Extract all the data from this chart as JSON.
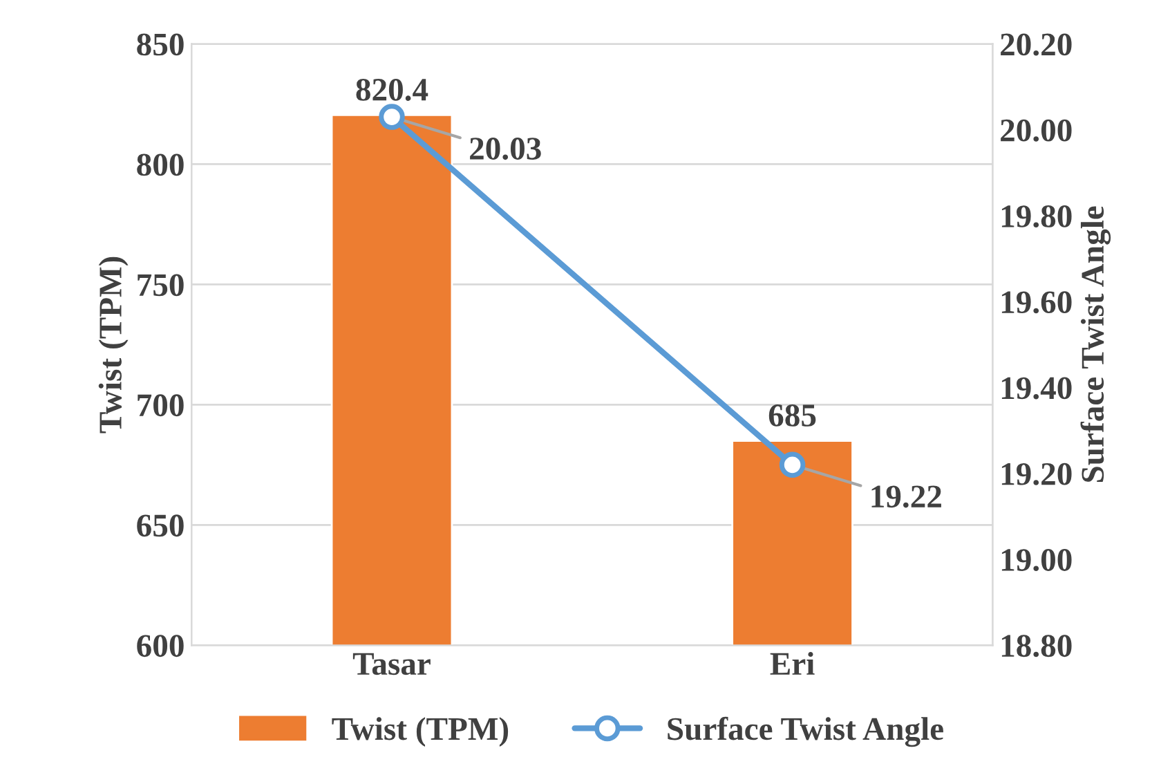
{
  "chart_data": {
    "type": "bar",
    "categories": [
      "Tasar",
      "Eri"
    ],
    "series": [
      {
        "name": "Twist (TPM)",
        "color": "#ed7d31",
        "values": [
          820.4,
          685
        ]
      },
      {
        "name": "Surface Twist Angle",
        "type": "line",
        "axis": "y2",
        "color": "#5b9bd5",
        "marker": "circle",
        "values": [
          20.03,
          19.22
        ]
      }
    ],
    "ylabel": "Twist (TPM)",
    "y2label": "Surface Twist Angle",
    "ylim": [
      600,
      850
    ],
    "yticks": [
      600,
      650,
      700,
      750,
      800,
      850
    ],
    "y2lim": [
      18.8,
      20.2
    ],
    "y2ticks": [
      {
        "value": 18.8,
        "label": "18.80"
      },
      {
        "value": 19.0,
        "label": "19.00"
      },
      {
        "value": 19.2,
        "label": "19.20"
      },
      {
        "value": 19.4,
        "label": "19.40"
      },
      {
        "value": 19.6,
        "label": "19.60"
      },
      {
        "value": 19.8,
        "label": "19.80"
      },
      {
        "value": 20.0,
        "label": "20.00"
      },
      {
        "value": 20.2,
        "label": "20.20"
      }
    ],
    "grid": "y",
    "legend": "bottom",
    "data_labels": true
  }
}
